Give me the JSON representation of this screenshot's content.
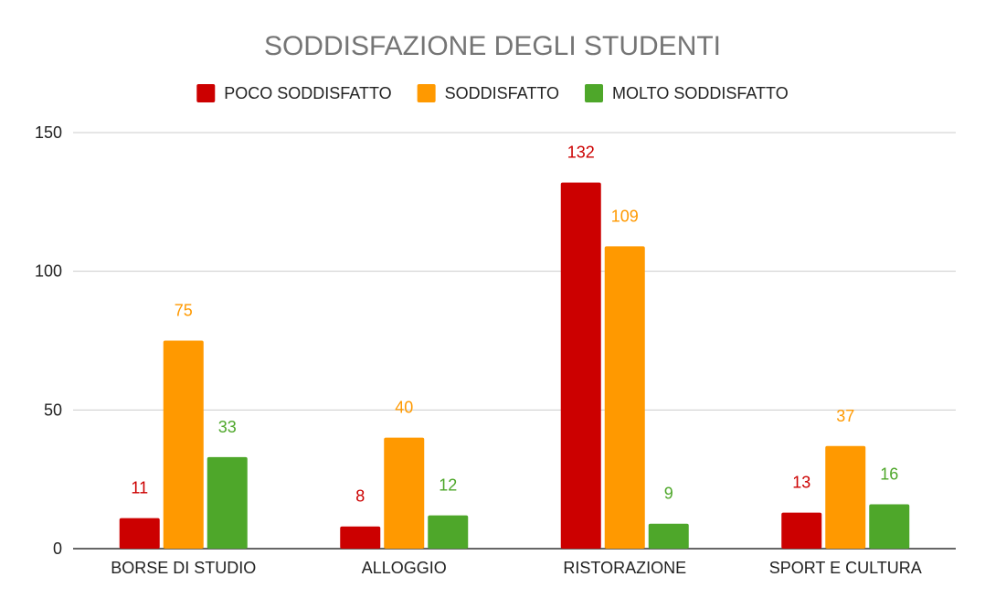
{
  "chart_data": {
    "type": "bar",
    "title": "SODDISFAZIONE DEGLI STUDENTI",
    "categories": [
      "BORSE DI STUDIO",
      "ALLOGGIO",
      "RISTORAZIONE",
      "SPORT E CULTURA"
    ],
    "series": [
      {
        "name": "POCO SODDISFATTO",
        "color": "#cc0000",
        "values": [
          11,
          8,
          132,
          13
        ]
      },
      {
        "name": "SODDISFATTO",
        "color": "#ff9900",
        "values": [
          75,
          40,
          109,
          37
        ]
      },
      {
        "name": "MOLTO SODDISFATTO",
        "color": "#4ea72a",
        "values": [
          33,
          12,
          9,
          16
        ]
      }
    ],
    "yticks": [
      0,
      50,
      100,
      150
    ],
    "ylim": [
      0,
      150
    ],
    "grid": true,
    "legend": "top",
    "data_labels": true
  }
}
